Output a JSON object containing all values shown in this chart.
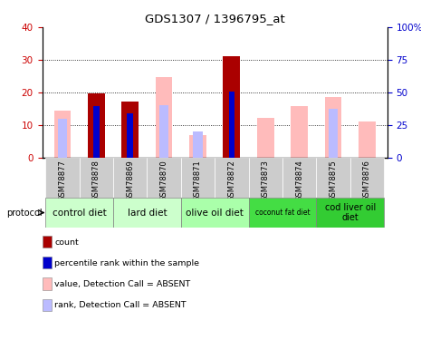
{
  "title": "GDS1307 / 1396795_at",
  "samples": [
    "GSM78877",
    "GSM78878",
    "GSM78869",
    "GSM78870",
    "GSM78871",
    "GSM78872",
    "GSM78873",
    "GSM78874",
    "GSM78875",
    "GSM78876"
  ],
  "count_values": [
    0,
    19.8,
    17.3,
    0,
    0,
    31.0,
    0,
    0,
    0,
    0
  ],
  "percentile_values": [
    0,
    15.8,
    13.5,
    0,
    0,
    20.3,
    0,
    0,
    0,
    0
  ],
  "absent_value_values": [
    14.5,
    0,
    0,
    24.8,
    7.0,
    0,
    12.2,
    15.8,
    18.5,
    11.0
  ],
  "absent_rank_values": [
    12.0,
    0,
    0,
    16.0,
    8.0,
    0,
    0,
    0,
    15.0,
    0
  ],
  "color_count": "#aa0000",
  "color_percentile": "#0000cc",
  "color_absent_value": "#ffbbbb",
  "color_absent_rank": "#bbbbff",
  "ylim_left": [
    0,
    40
  ],
  "ylim_right": [
    0,
    100
  ],
  "yticks_left": [
    0,
    10,
    20,
    30,
    40
  ],
  "yticks_right": [
    0,
    25,
    50,
    75,
    100
  ],
  "ytick_labels_right": [
    "0",
    "25",
    "50",
    "75",
    "100%"
  ],
  "protocol_groups": [
    {
      "label": "control diet",
      "start": 0,
      "end": 1,
      "color": "#ccffcc"
    },
    {
      "label": "lard diet",
      "start": 2,
      "end": 3,
      "color": "#ccffcc"
    },
    {
      "label": "olive oil diet",
      "start": 4,
      "end": 5,
      "color": "#aaffaa"
    },
    {
      "label": "coconut fat diet",
      "start": 6,
      "end": 7,
      "color": "#55ee55",
      "fontsize": 6
    },
    {
      "label": "cod liver oil\ndiet",
      "start": 8,
      "end": 9,
      "color": "#33dd33"
    }
  ],
  "legend_items": [
    {
      "label": "count",
      "color": "#aa0000"
    },
    {
      "label": "percentile rank within the sample",
      "color": "#0000cc"
    },
    {
      "label": "value, Detection Call = ABSENT",
      "color": "#ffbbbb"
    },
    {
      "label": "rank, Detection Call = ABSENT",
      "color": "#bbbbff"
    }
  ],
  "bar_width": 0.5,
  "ylabel_left_color": "#cc0000",
  "ylabel_right_color": "#0000cc",
  "tick_label_bg": "#dddddd",
  "protocol_bg_light": "#ccffcc",
  "protocol_bg_medium": "#aaffaa",
  "protocol_bg_dark": "#44ee44"
}
